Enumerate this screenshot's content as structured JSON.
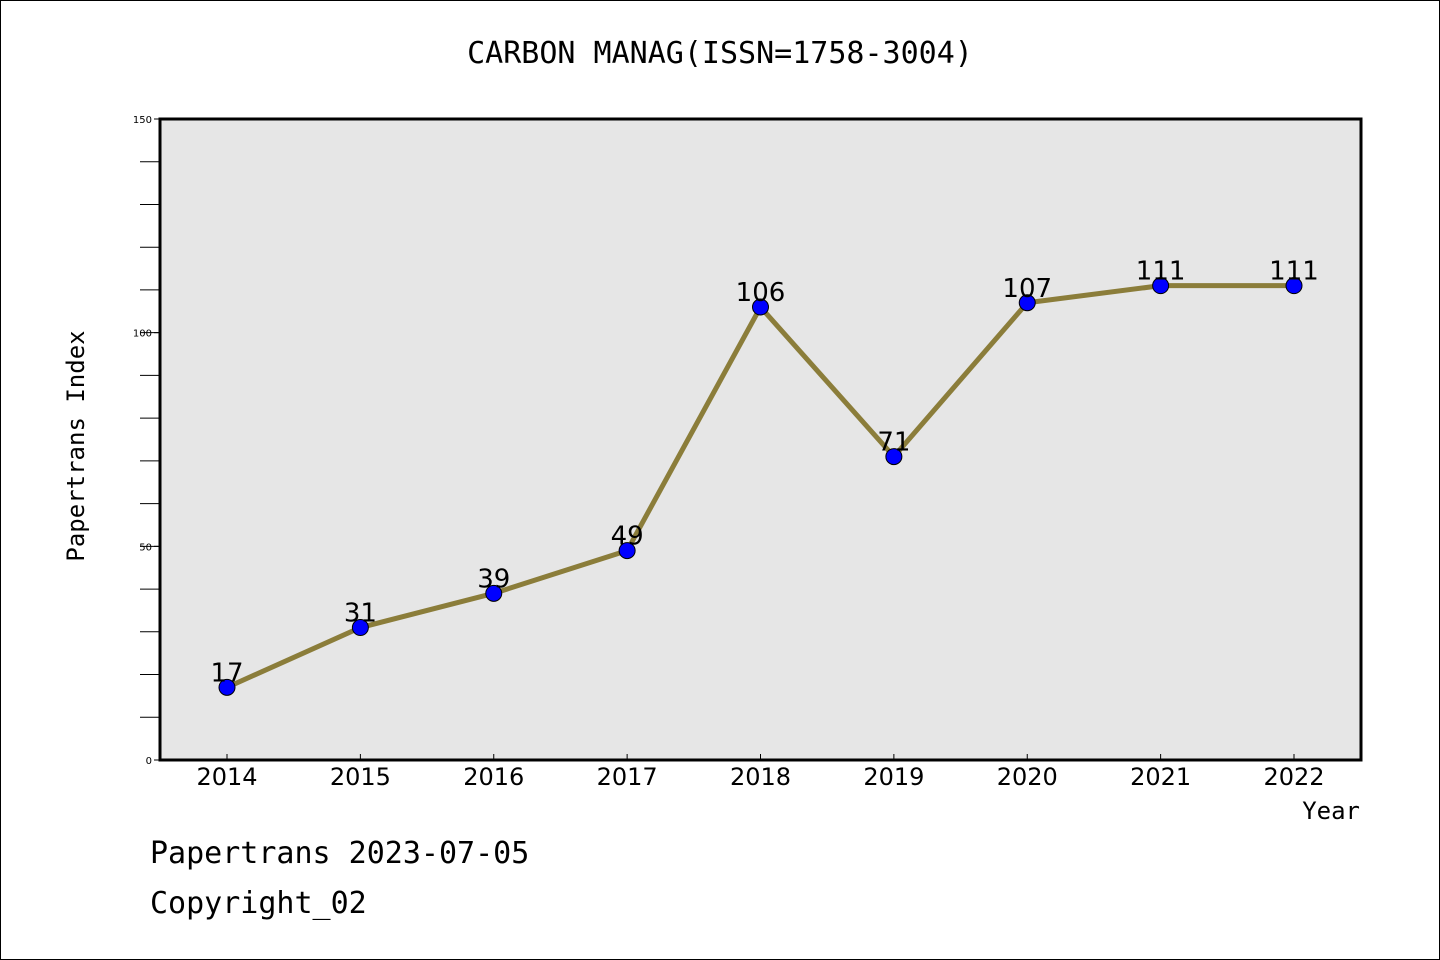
{
  "title": "CARBON MANAG(ISSN=1758-3004)",
  "footer": {
    "line1": "Papertrans 2023-07-05",
    "line2": "Copyright_02"
  },
  "chart_data": {
    "type": "line",
    "title": "CARBON MANAG(ISSN=1758-3004)",
    "xlabel": "Year",
    "ylabel": "Papertrans Index",
    "categories": [
      "2014",
      "2015",
      "2016",
      "2017",
      "2018",
      "2019",
      "2020",
      "2021",
      "2022"
    ],
    "series": [
      {
        "values": [
          17,
          31,
          39,
          49,
          106,
          71,
          107,
          111,
          111
        ]
      }
    ],
    "data_labels": [
      "17",
      "31",
      "39",
      "49",
      "106",
      "71",
      "107",
      "111",
      "111"
    ],
    "ylim": [
      0,
      150
    ],
    "yticks": [
      "0",
      "50",
      "100",
      "150"
    ],
    "minor_tick_step": 10,
    "grid": false,
    "colors": {
      "plot_background": "#e6e6e6",
      "line": "#8b7d3a",
      "marker": "#0000ff",
      "axis": "#000000"
    }
  }
}
